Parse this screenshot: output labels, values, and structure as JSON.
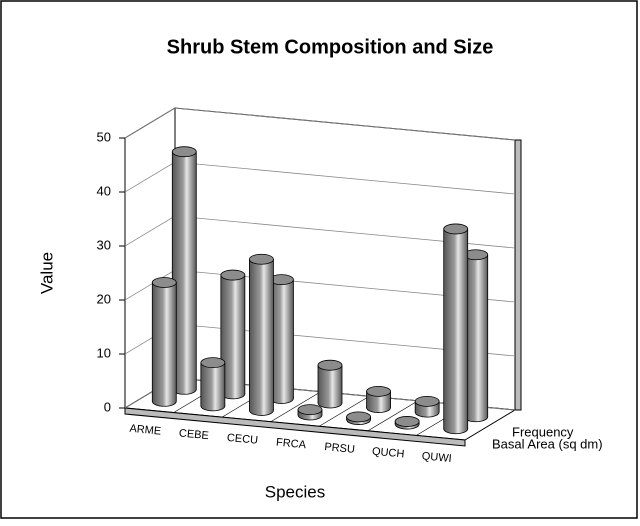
{
  "chart_data": {
    "type": "bar3d",
    "title": "Shrub Stem Composition and Size",
    "x_label": "Species",
    "y_label": "Value",
    "categories": [
      "ARME",
      "CEBE",
      "CECU",
      "FRCA",
      "PRSU",
      "QUCH",
      "QUWI"
    ],
    "series": [
      {
        "name": "Frequency",
        "color": "#9a9a9a",
        "values": [
          44,
          22,
          22,
          7,
          3,
          2,
          30
        ]
      },
      {
        "name": "Basal Area (sq dm)",
        "color": "#9a9a9a",
        "values": [
          22,
          8,
          28,
          1,
          0.5,
          0.5,
          37
        ]
      }
    ],
    "ylim": [
      0,
      50
    ],
    "yticks": [
      0,
      10,
      20,
      30,
      40,
      50
    ],
    "grid": true
  }
}
